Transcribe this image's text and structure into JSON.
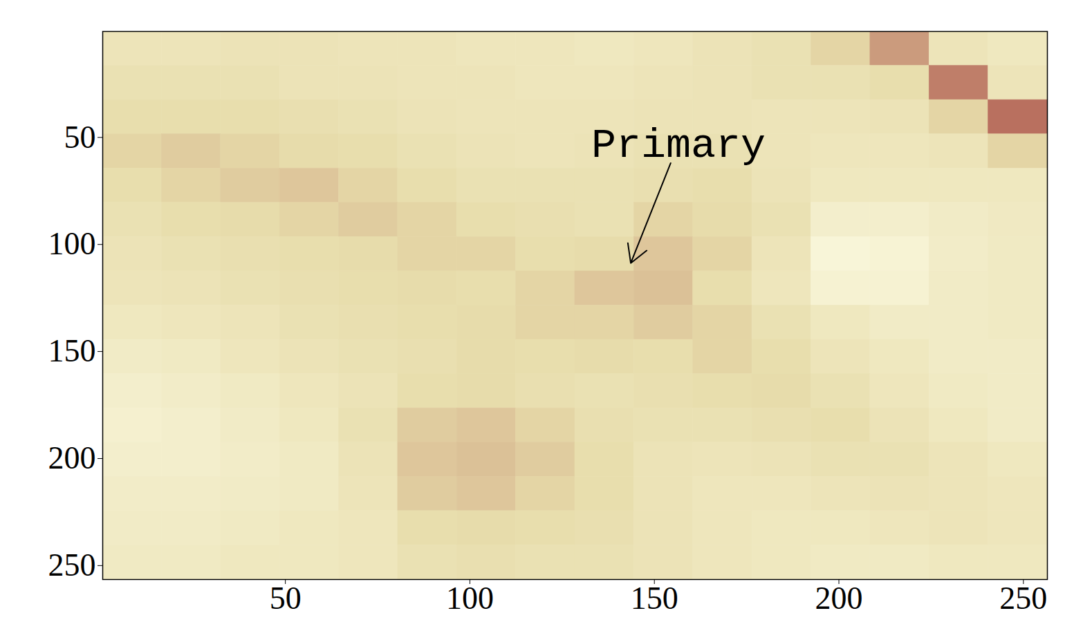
{
  "chart_data": {
    "type": "heatmap",
    "x": [
      8.5,
      24.5,
      40.5,
      56.5,
      72.5,
      88.5,
      104.5,
      120.5,
      136.5,
      152.5,
      168.5,
      184.5,
      200.5,
      216.5,
      232.5,
      248.5
    ],
    "y": [
      8.5,
      24.5,
      40.5,
      56.5,
      72.5,
      88.5,
      104.5,
      120.5,
      136.5,
      152.5,
      168.5,
      184.5,
      200.5,
      216.5,
      232.5,
      248.5
    ],
    "values": [
      [
        0.4,
        0.4,
        0.42,
        0.42,
        0.4,
        0.4,
        0.38,
        0.38,
        0.35,
        0.38,
        0.42,
        0.45,
        0.55,
        0.75,
        0.4,
        0.35
      ],
      [
        0.45,
        0.45,
        0.45,
        0.42,
        0.42,
        0.4,
        0.4,
        0.38,
        0.38,
        0.4,
        0.42,
        0.45,
        0.45,
        0.5,
        0.85,
        0.4
      ],
      [
        0.5,
        0.5,
        0.5,
        0.48,
        0.45,
        0.42,
        0.4,
        0.4,
        0.4,
        0.42,
        0.42,
        0.4,
        0.4,
        0.42,
        0.55,
        0.9
      ],
      [
        0.55,
        0.58,
        0.55,
        0.52,
        0.5,
        0.45,
        0.42,
        0.4,
        0.42,
        0.45,
        0.45,
        0.4,
        0.38,
        0.38,
        0.4,
        0.55
      ],
      [
        0.5,
        0.55,
        0.58,
        0.6,
        0.55,
        0.5,
        0.45,
        0.45,
        0.45,
        0.48,
        0.5,
        0.42,
        0.35,
        0.35,
        0.35,
        0.35
      ],
      [
        0.45,
        0.5,
        0.52,
        0.55,
        0.58,
        0.55,
        0.5,
        0.48,
        0.45,
        0.55,
        0.52,
        0.45,
        0.25,
        0.25,
        0.3,
        0.33
      ],
      [
        0.42,
        0.45,
        0.48,
        0.5,
        0.52,
        0.55,
        0.55,
        0.5,
        0.52,
        0.6,
        0.55,
        0.4,
        0.15,
        0.18,
        0.28,
        0.32
      ],
      [
        0.4,
        0.42,
        0.45,
        0.48,
        0.5,
        0.52,
        0.5,
        0.55,
        0.6,
        0.62,
        0.5,
        0.38,
        0.2,
        0.2,
        0.3,
        0.32
      ],
      [
        0.35,
        0.38,
        0.4,
        0.45,
        0.48,
        0.5,
        0.52,
        0.55,
        0.55,
        0.58,
        0.55,
        0.45,
        0.35,
        0.3,
        0.3,
        0.32
      ],
      [
        0.3,
        0.32,
        0.38,
        0.42,
        0.45,
        0.48,
        0.52,
        0.5,
        0.52,
        0.5,
        0.55,
        0.5,
        0.4,
        0.35,
        0.3,
        0.3
      ],
      [
        0.25,
        0.28,
        0.32,
        0.38,
        0.42,
        0.5,
        0.52,
        0.48,
        0.45,
        0.48,
        0.5,
        0.52,
        0.45,
        0.38,
        0.32,
        0.3
      ],
      [
        0.22,
        0.25,
        0.3,
        0.35,
        0.45,
        0.58,
        0.6,
        0.55,
        0.48,
        0.45,
        0.45,
        0.48,
        0.5,
        0.42,
        0.35,
        0.3
      ],
      [
        0.25,
        0.25,
        0.28,
        0.32,
        0.42,
        0.6,
        0.62,
        0.58,
        0.5,
        0.42,
        0.4,
        0.42,
        0.45,
        0.45,
        0.4,
        0.35
      ],
      [
        0.28,
        0.28,
        0.3,
        0.32,
        0.4,
        0.58,
        0.6,
        0.55,
        0.5,
        0.42,
        0.38,
        0.38,
        0.4,
        0.42,
        0.4,
        0.38
      ],
      [
        0.3,
        0.3,
        0.32,
        0.35,
        0.38,
        0.5,
        0.52,
        0.5,
        0.48,
        0.42,
        0.38,
        0.35,
        0.35,
        0.38,
        0.4,
        0.38
      ],
      [
        0.32,
        0.32,
        0.35,
        0.35,
        0.38,
        0.45,
        0.48,
        0.45,
        0.45,
        0.42,
        0.38,
        0.35,
        0.32,
        0.32,
        0.35,
        0.35
      ]
    ],
    "xlim": [
      0.5,
      256.5
    ],
    "ylim": [
      0.5,
      256.5
    ],
    "xticks": [
      50,
      100,
      150,
      200,
      250
    ],
    "yticks": [
      50,
      100,
      150,
      200,
      250
    ],
    "annotations": [
      {
        "text": "Primary",
        "x": 156.5,
        "y": 53,
        "arrow_x": 143.6,
        "arrow_y": 108.7
      }
    ]
  }
}
